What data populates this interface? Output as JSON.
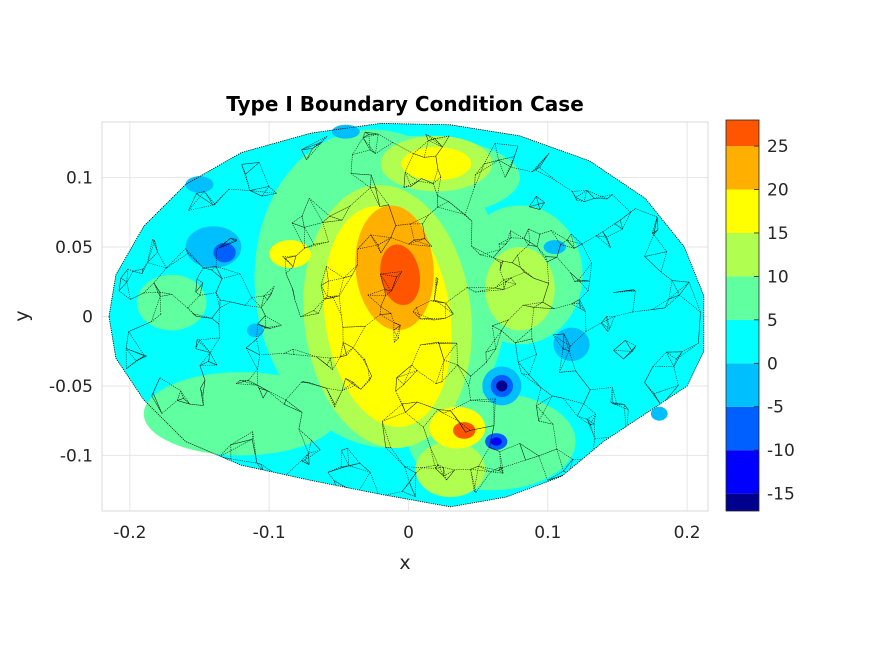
{
  "chart_data": {
    "type": "contour",
    "title": "Type I Boundary Condition Case",
    "xlabel": "x",
    "ylabel": "y",
    "xlim": [
      -0.22,
      0.215
    ],
    "ylim": [
      -0.14,
      0.14
    ],
    "xticks": [
      -0.2,
      -0.1,
      0,
      0.1,
      0.2
    ],
    "xtick_labels": [
      "-0.2",
      "-0.1",
      "0",
      "0.1",
      "0.2"
    ],
    "yticks": [
      0.1,
      0.05,
      0,
      -0.05,
      -0.1
    ],
    "ytick_labels": [
      "0.1",
      "0.05",
      "0",
      "-0.05",
      "-0.1"
    ],
    "grid": true,
    "mesh_overlay": true,
    "colorbar": {
      "levels": [
        -17,
        -15,
        -10,
        -5,
        0,
        5,
        10,
        15,
        20,
        25,
        28
      ],
      "ticks": [
        25,
        20,
        15,
        10,
        5,
        0,
        -5,
        -10,
        -15
      ],
      "tick_labels": [
        "25",
        "20",
        "15",
        "10",
        "5",
        "0",
        "-5",
        "-10",
        "-15"
      ],
      "colors": [
        "#00008f",
        "#0000ff",
        "#005fff",
        "#00bfff",
        "#00ffff",
        "#60ff9f",
        "#b0ff50",
        "#ffff00",
        "#ffaf00",
        "#ff5500"
      ]
    },
    "features": [
      {
        "kind": "peak",
        "x": -0.005,
        "y": 0.03,
        "value": 25
      },
      {
        "kind": "peak",
        "x": 0.04,
        "y": -0.082,
        "value": 23
      },
      {
        "kind": "peak",
        "x": 0.02,
        "y": 0.11,
        "value": 16
      },
      {
        "kind": "trough",
        "x": 0.067,
        "y": -0.05,
        "value": -15
      },
      {
        "kind": "trough",
        "x": 0.063,
        "y": -0.09,
        "value": -12
      },
      {
        "kind": "trough",
        "x": -0.14,
        "y": 0.05,
        "value": -8
      },
      {
        "kind": "trough",
        "x": 0.117,
        "y": -0.02,
        "value": -6
      }
    ]
  }
}
